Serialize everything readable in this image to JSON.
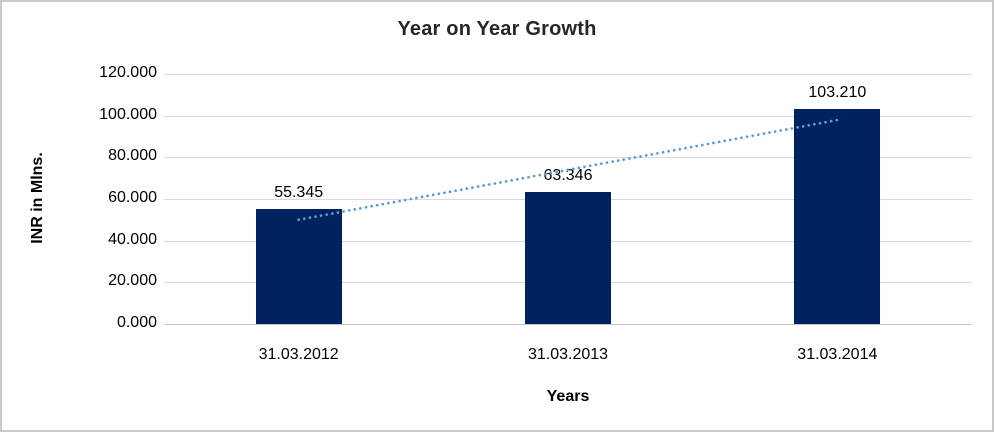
{
  "chart_data": {
    "type": "bar",
    "title": "Year on Year Growth",
    "xlabel": "Years",
    "ylabel": "INR in Mlns.",
    "categories": [
      "31.03.2012",
      "31.03.2013",
      "31.03.2014"
    ],
    "values": [
      55.345,
      63.346,
      103.21
    ],
    "data_labels": [
      "55.345",
      "63.346",
      "103.210"
    ],
    "yticks": [
      "0.000",
      "20.000",
      "40.000",
      "60.000",
      "80.000",
      "100.000",
      "120.000"
    ],
    "ylim": [
      0,
      120
    ],
    "grid": true,
    "legend": false,
    "bar_color": "#002261",
    "gridline_color": "#d9d9d9",
    "trendline": {
      "type": "linear",
      "style": "dotted",
      "color": "#5b9bd5"
    }
  }
}
